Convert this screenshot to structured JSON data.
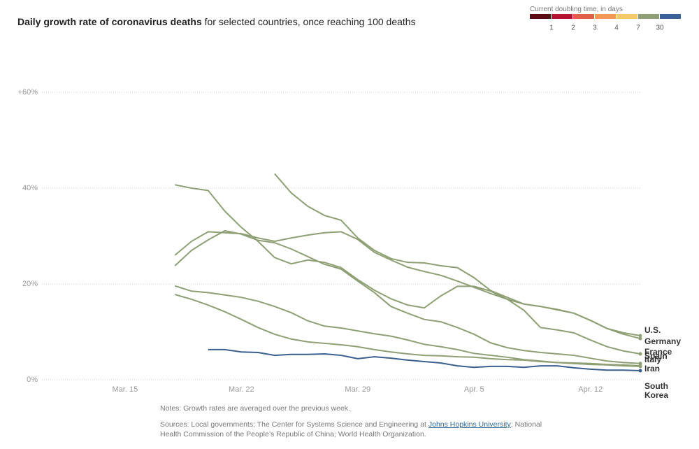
{
  "chart_data": {
    "type": "line",
    "title": "Daily growth rate of coronavirus deaths",
    "subtitle": "for selected countries, once reaching 100 deaths",
    "categories": [
      null,
      null,
      null,
      null,
      null,
      "Mar. 15",
      null,
      null,
      null,
      null,
      null,
      null,
      "Mar. 22",
      null,
      null,
      null,
      null,
      null,
      null,
      "Mar. 29",
      null,
      null,
      null,
      null,
      null,
      null,
      "Apr. 5",
      null,
      null,
      null,
      null,
      null,
      null,
      "Apr. 12",
      null,
      null,
      null
    ],
    "ylim": [
      0,
      60
    ],
    "yticks": [
      {
        "value": 0,
        "label": "0%"
      },
      {
        "value": 20,
        "label": "20%"
      },
      {
        "value": 40,
        "label": "40%"
      },
      {
        "value": 60,
        "label": "+60%"
      }
    ],
    "grid": true,
    "series": [
      {
        "name": "U.S.",
        "color": "#8f9f74",
        "values": [
          null,
          null,
          null,
          null,
          null,
          null,
          null,
          null,
          null,
          null,
          null,
          null,
          null,
          null,
          43,
          39,
          36.2,
          34.3,
          33.3,
          29.6,
          27,
          25.3,
          24.5,
          24.4,
          23.8,
          23.4,
          21.3,
          18.6,
          17.2,
          15.8,
          15.3,
          14.6,
          13.9,
          12.4,
          10.7,
          9.8,
          9.2
        ]
      },
      {
        "name": "Germany",
        "color": "#8f9f74",
        "values": [
          null,
          null,
          null,
          null,
          null,
          null,
          null,
          null,
          26,
          28.9,
          30.9,
          30.7,
          30.5,
          29.6,
          28.9,
          29.6,
          30.2,
          30.7,
          30.9,
          29.3,
          26.6,
          25,
          23.5,
          22.6,
          21.8,
          20.6,
          19.3,
          18,
          16.8,
          15.8,
          15.3,
          14.7,
          13.9,
          12.4,
          10.7,
          9.5,
          8.6
        ]
      },
      {
        "name": "France",
        "color": "#8f9f74",
        "values": [
          null,
          null,
          null,
          null,
          null,
          null,
          null,
          null,
          40.7,
          40,
          39.5,
          35.2,
          31.8,
          28.9,
          25.5,
          24.2,
          25,
          24.5,
          23.4,
          20.9,
          18.7,
          16.9,
          15.6,
          15,
          17.5,
          19.5,
          19.5,
          18.5,
          16.8,
          14.5,
          10.9,
          10.4,
          9.8,
          8.3,
          6.9,
          6,
          5.4
        ]
      },
      {
        "name": "Spain",
        "color": "#8f9f74",
        "values": [
          null,
          null,
          null,
          null,
          null,
          null,
          null,
          null,
          23.8,
          27,
          29.2,
          31.1,
          30.4,
          29.1,
          28.6,
          27.3,
          25.7,
          24.1,
          23.1,
          20.6,
          18.2,
          15.3,
          13.9,
          12.6,
          12.1,
          10.9,
          9.5,
          7.7,
          6.7,
          6.1,
          5.7,
          5.4,
          5.1,
          4.5,
          3.9,
          3.6,
          3.4
        ]
      },
      {
        "name": "Italy",
        "color": "#8f9f74",
        "values": [
          null,
          null,
          null,
          null,
          null,
          null,
          null,
          null,
          19.6,
          18.5,
          18.2,
          17.7,
          17.2,
          16.4,
          15.3,
          14,
          12.3,
          11.2,
          10.8,
          10.2,
          9.6,
          9.1,
          8.3,
          7.4,
          6.9,
          6.3,
          5.5,
          5.1,
          4.7,
          4.2,
          3.9,
          3.6,
          3.5,
          3.4,
          3.2,
          3.1,
          2.9
        ]
      },
      {
        "name": "Iran",
        "color": "#8f9f74",
        "values": [
          null,
          null,
          null,
          null,
          null,
          null,
          null,
          null,
          17.8,
          16.8,
          15.6,
          14.2,
          12.6,
          10.9,
          9.5,
          8.5,
          7.9,
          7.6,
          7.3,
          6.9,
          6.3,
          5.8,
          5.4,
          5.1,
          5,
          4.8,
          4.7,
          4.4,
          4.2,
          4.1,
          3.8,
          3.6,
          3.4,
          3.2,
          3.1,
          2.9,
          2.8
        ]
      },
      {
        "name": "South Korea",
        "color": "#3a5f8f",
        "values": [
          null,
          null,
          null,
          null,
          null,
          null,
          null,
          null,
          null,
          null,
          6.3,
          6.3,
          5.8,
          5.7,
          5.1,
          5.3,
          5.3,
          5.4,
          5.1,
          4.4,
          4.8,
          4.5,
          4.1,
          3.8,
          3.5,
          2.9,
          2.6,
          2.8,
          2.8,
          2.6,
          2.9,
          2.9,
          2.5,
          2.2,
          2,
          2,
          1.9
        ]
      }
    ],
    "legend": {
      "title": "Current doubling time, in days",
      "colors": [
        "#5a0c12",
        "#b3132e",
        "#e0604a",
        "#f29a55",
        "#f4c96b",
        "#8f9f74",
        "#3a6296"
      ],
      "labels": [
        1,
        2,
        3,
        4,
        7,
        30
      ]
    },
    "notes": "Notes: Growth rates are averaged over the previous week.",
    "sources": {
      "before": "Sources: Local governments; The Center for Systems Science and Engineering at",
      "link": "Johns Hopkins University",
      "after": "; National Health Commission of the People’s Republic of China; World Health Organization."
    }
  }
}
